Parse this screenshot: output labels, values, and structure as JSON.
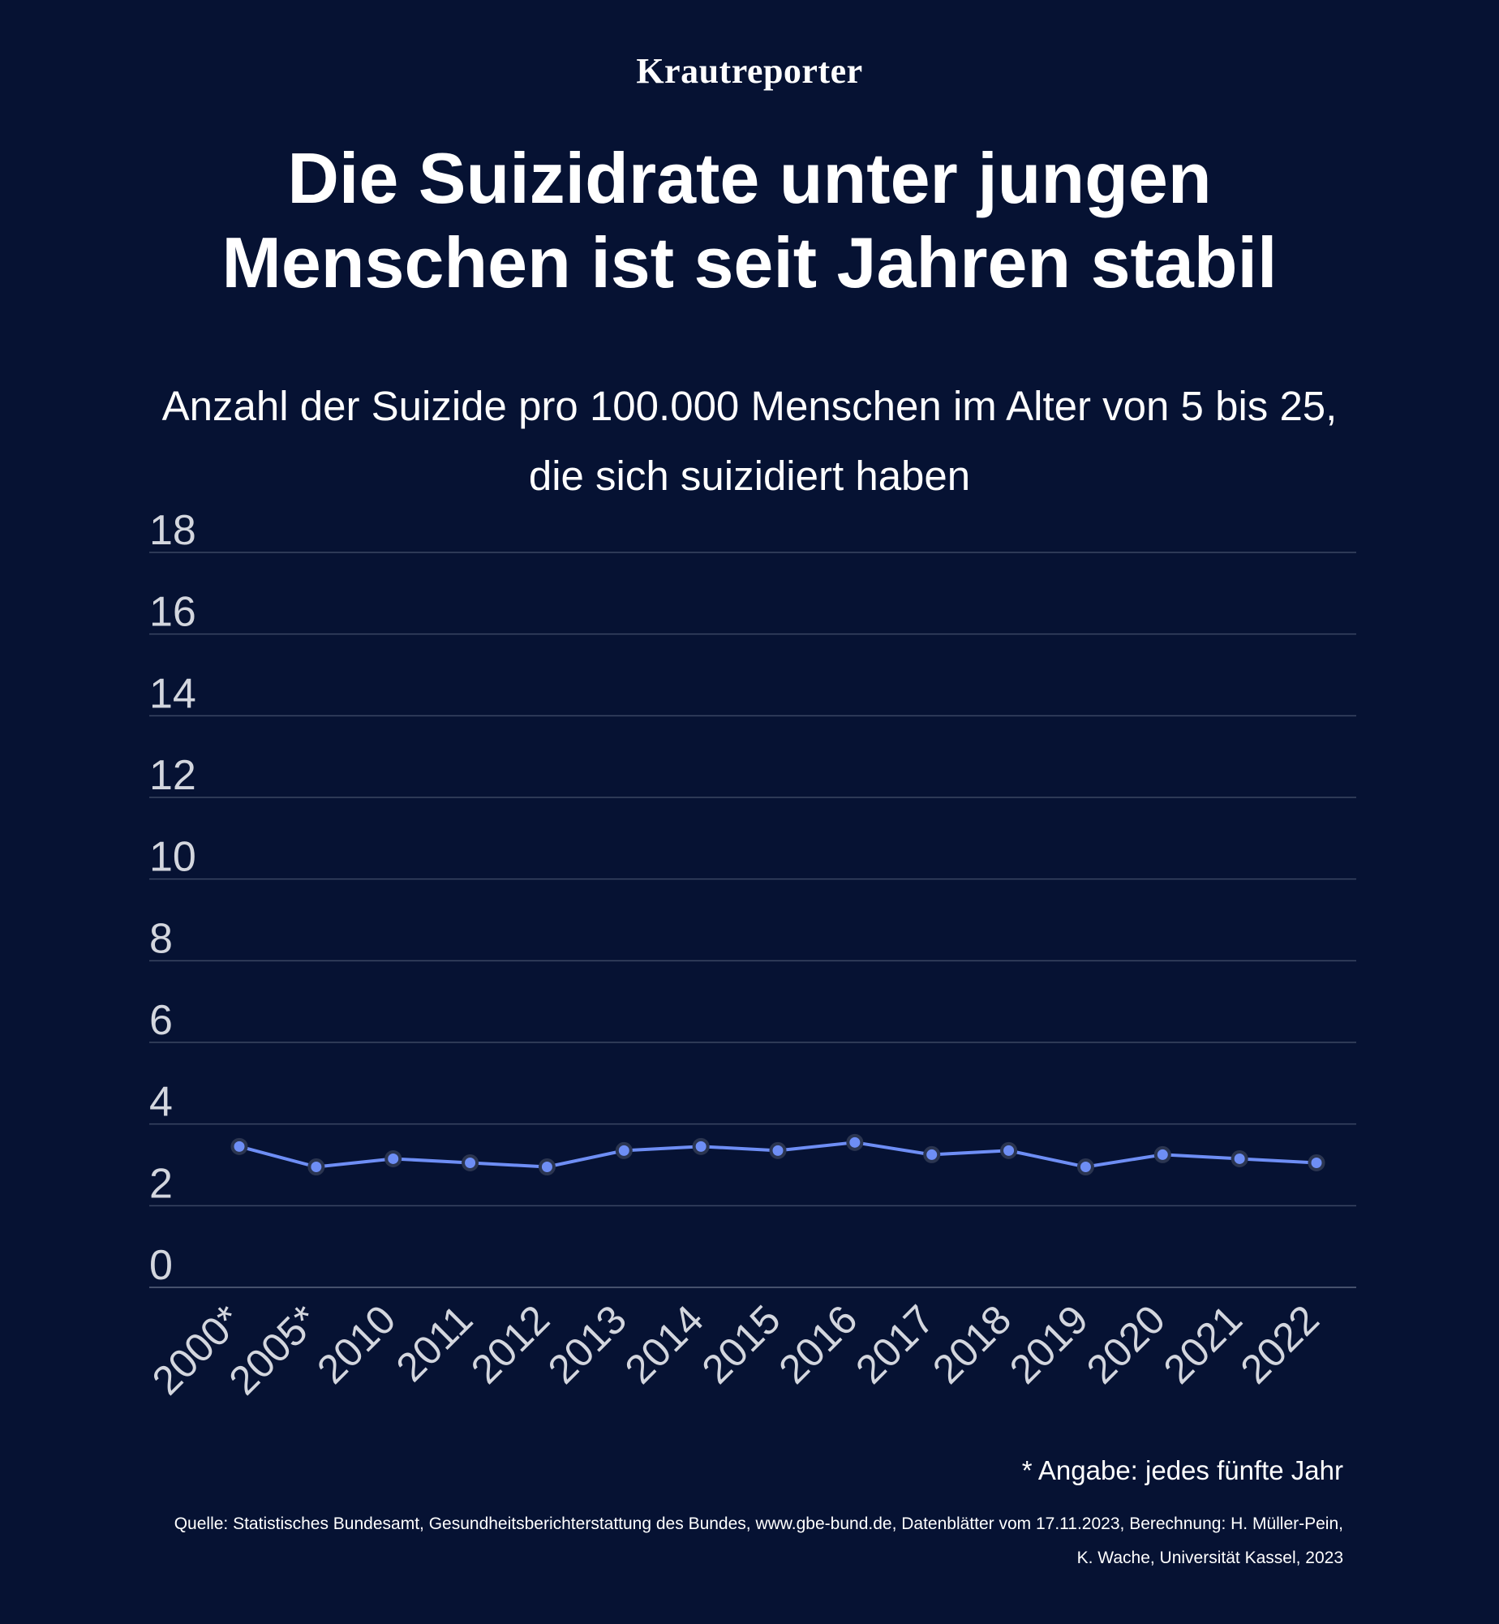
{
  "brand": "Krautreporter",
  "title_line1": "Die Suizidrate unter jungen",
  "title_line2": "Menschen ist seit Jahren stabil",
  "subtitle_line1": "Anzahl der Suizide pro 100.000 Menschen im Alter von 5 bis 25,",
  "subtitle_line2": "die sich suizidiert haben",
  "footnote": "* Angabe: jedes fünfte Jahr",
  "source_line1": "Quelle: Statistisches Bundesamt, Gesundheitsberichterstattung des Bundes, www.gbe-bund.de, Datenblätter vom 17.11.2023, Berechnung: H. Müller-Pein,",
  "source_line2": "K. Wache, Universität Kassel, 2023",
  "colors": {
    "background": "#061233",
    "line": "#6e8ef5",
    "grid": "#3a4663",
    "tick": "#d3d6de"
  },
  "chart_data": {
    "type": "line",
    "title": "Die Suizidrate unter jungen Menschen ist seit Jahren stabil",
    "xlabel": "",
    "ylabel": "Anzahl der Suizide pro 100.000 Menschen im Alter von 5 bis 25",
    "categories": [
      "2000*",
      "2005*",
      "2010",
      "2011",
      "2012",
      "2013",
      "2014",
      "2015",
      "2016",
      "2017",
      "2018",
      "2019",
      "2020",
      "2021",
      "2022"
    ],
    "series": [
      {
        "name": "Suizide pro 100.000",
        "values": [
          3.45,
          2.95,
          3.15,
          3.05,
          2.95,
          3.35,
          3.45,
          3.35,
          3.55,
          3.25,
          3.35,
          2.95,
          3.25,
          3.15,
          3.05
        ]
      }
    ],
    "ylim": [
      0,
      18
    ],
    "yticks": [
      0,
      2,
      4,
      6,
      8,
      10,
      12,
      14,
      16,
      18
    ],
    "grid": true,
    "legend": "none"
  }
}
